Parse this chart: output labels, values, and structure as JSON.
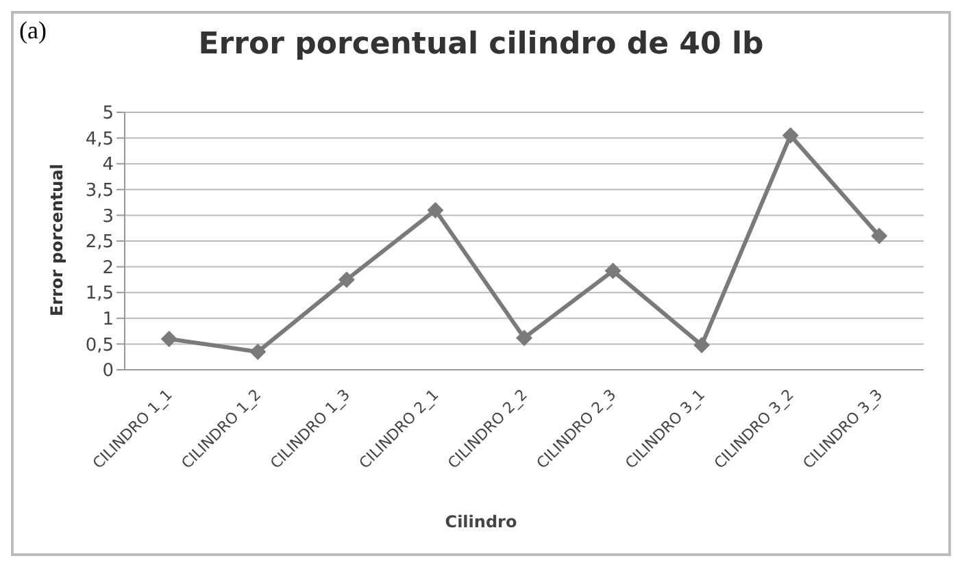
{
  "chart_data": {
    "type": "line",
    "title": "Error porcentual cilindro de 40 lb",
    "xlabel": "Cilindro",
    "ylabel": "Error porcentual",
    "annotations": [
      "(a)"
    ],
    "categories": [
      "CILINDRO 1_1",
      "CILINDRO 1_2",
      "CILINDRO 1_3",
      "CILINDRO 2_1",
      "CILINDRO 2_2",
      "CILINDRO 2_3",
      "CILINDRO 3_1",
      "CILINDRO 3_2",
      "CILINDRO 3_3"
    ],
    "series": [
      {
        "color": "#7a7a7a",
        "values": [
          0.6,
          0.35,
          1.75,
          3.1,
          0.62,
          1.92,
          0.48,
          4.55,
          2.6
        ]
      }
    ],
    "ylim": [
      0,
      5
    ],
    "yticks": [
      0,
      {
        "value": 0.5,
        "label": "0,5"
      },
      1,
      {
        "value": 1.5,
        "label": "1,5"
      },
      2,
      {
        "value": 2.5,
        "label": "2,5"
      },
      3,
      {
        "value": 3.5,
        "label": "3,5"
      },
      4,
      {
        "value": 4.5,
        "label": "4,5"
      },
      5
    ],
    "grid": "y",
    "legend": false,
    "marker": "diamond",
    "line_style": "solid"
  }
}
